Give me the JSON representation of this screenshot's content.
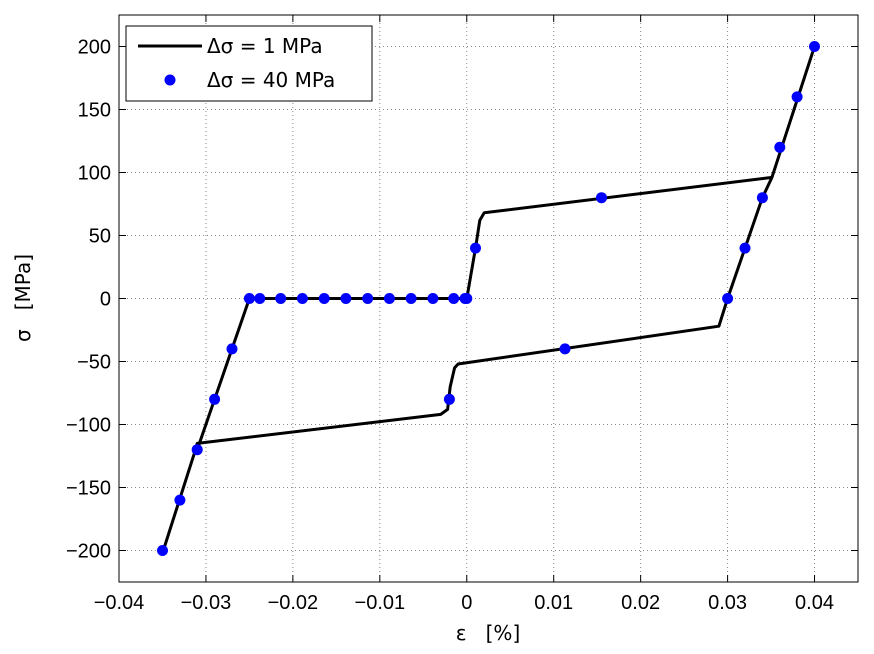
{
  "chart_data": {
    "type": "line",
    "title": "",
    "xlabel": "ε   [%]",
    "ylabel": "σ   [MPa]",
    "xlim": [
      -0.04,
      0.045
    ],
    "ylim": [
      -225,
      225
    ],
    "xticks": [
      -0.04,
      -0.03,
      -0.02,
      -0.01,
      0,
      0.01,
      0.02,
      0.03,
      0.04
    ],
    "xtick_labels": [
      "−0.04",
      "−0.03",
      "−0.02",
      "−0.01",
      "0",
      "0.01",
      "0.02",
      "0.03",
      "0.04"
    ],
    "yticks": [
      200,
      150,
      100,
      50,
      0,
      -50,
      -100,
      -150,
      -200
    ],
    "ytick_labels": [
      "200",
      "150",
      "100",
      "50",
      "0",
      "−50",
      "−100",
      "−150",
      "−200"
    ],
    "grid": true,
    "legend_position": "top-left",
    "series": [
      {
        "name": "Δσ = 1 MPa",
        "style": "line",
        "color": "#000000",
        "x": [
          -0.0349,
          -0.0312,
          -0.031,
          -0.003,
          -0.0022,
          -0.0019,
          -0.0014,
          -0.001,
          0.029,
          0.03,
          0.034,
          0.0351,
          0.04
        ],
        "y": [
          -200,
          -120,
          -115,
          -92,
          -88,
          -70,
          -55,
          -52,
          -22,
          0,
          80,
          96,
          200
        ]
      },
      {
        "name": "",
        "style": "line",
        "color": "#000000",
        "x": [
          -0.031,
          -0.029,
          -0.027,
          -0.025,
          0.0,
          0.001,
          0.0015,
          0.002,
          0.035
        ],
        "y": [
          -120,
          -80,
          -40,
          0,
          0,
          40,
          62,
          68,
          96
        ]
      },
      {
        "name": "Δσ = 40 MPa",
        "style": "marker",
        "color": "#0000ff",
        "x": [
          -0.035,
          -0.033,
          -0.031,
          -0.029,
          -0.027,
          -0.025,
          -0.0238,
          -0.0214,
          -0.0189,
          -0.0164,
          -0.0139,
          -0.0114,
          -0.0089,
          -0.0064,
          -0.0039,
          -0.0015,
          -0.0002,
          0.0,
          0.001,
          0.0155,
          0.036,
          0.038,
          0.04,
          -0.002,
          0.0113,
          0.03,
          0.032,
          0.034
        ],
        "y": [
          -200,
          -160,
          -120,
          -80,
          -40,
          0,
          0,
          0,
          0,
          0,
          0,
          0,
          0,
          0,
          0,
          0,
          0,
          0,
          40,
          80,
          120,
          160,
          200,
          -80,
          -40,
          0,
          40,
          80
        ]
      }
    ]
  }
}
